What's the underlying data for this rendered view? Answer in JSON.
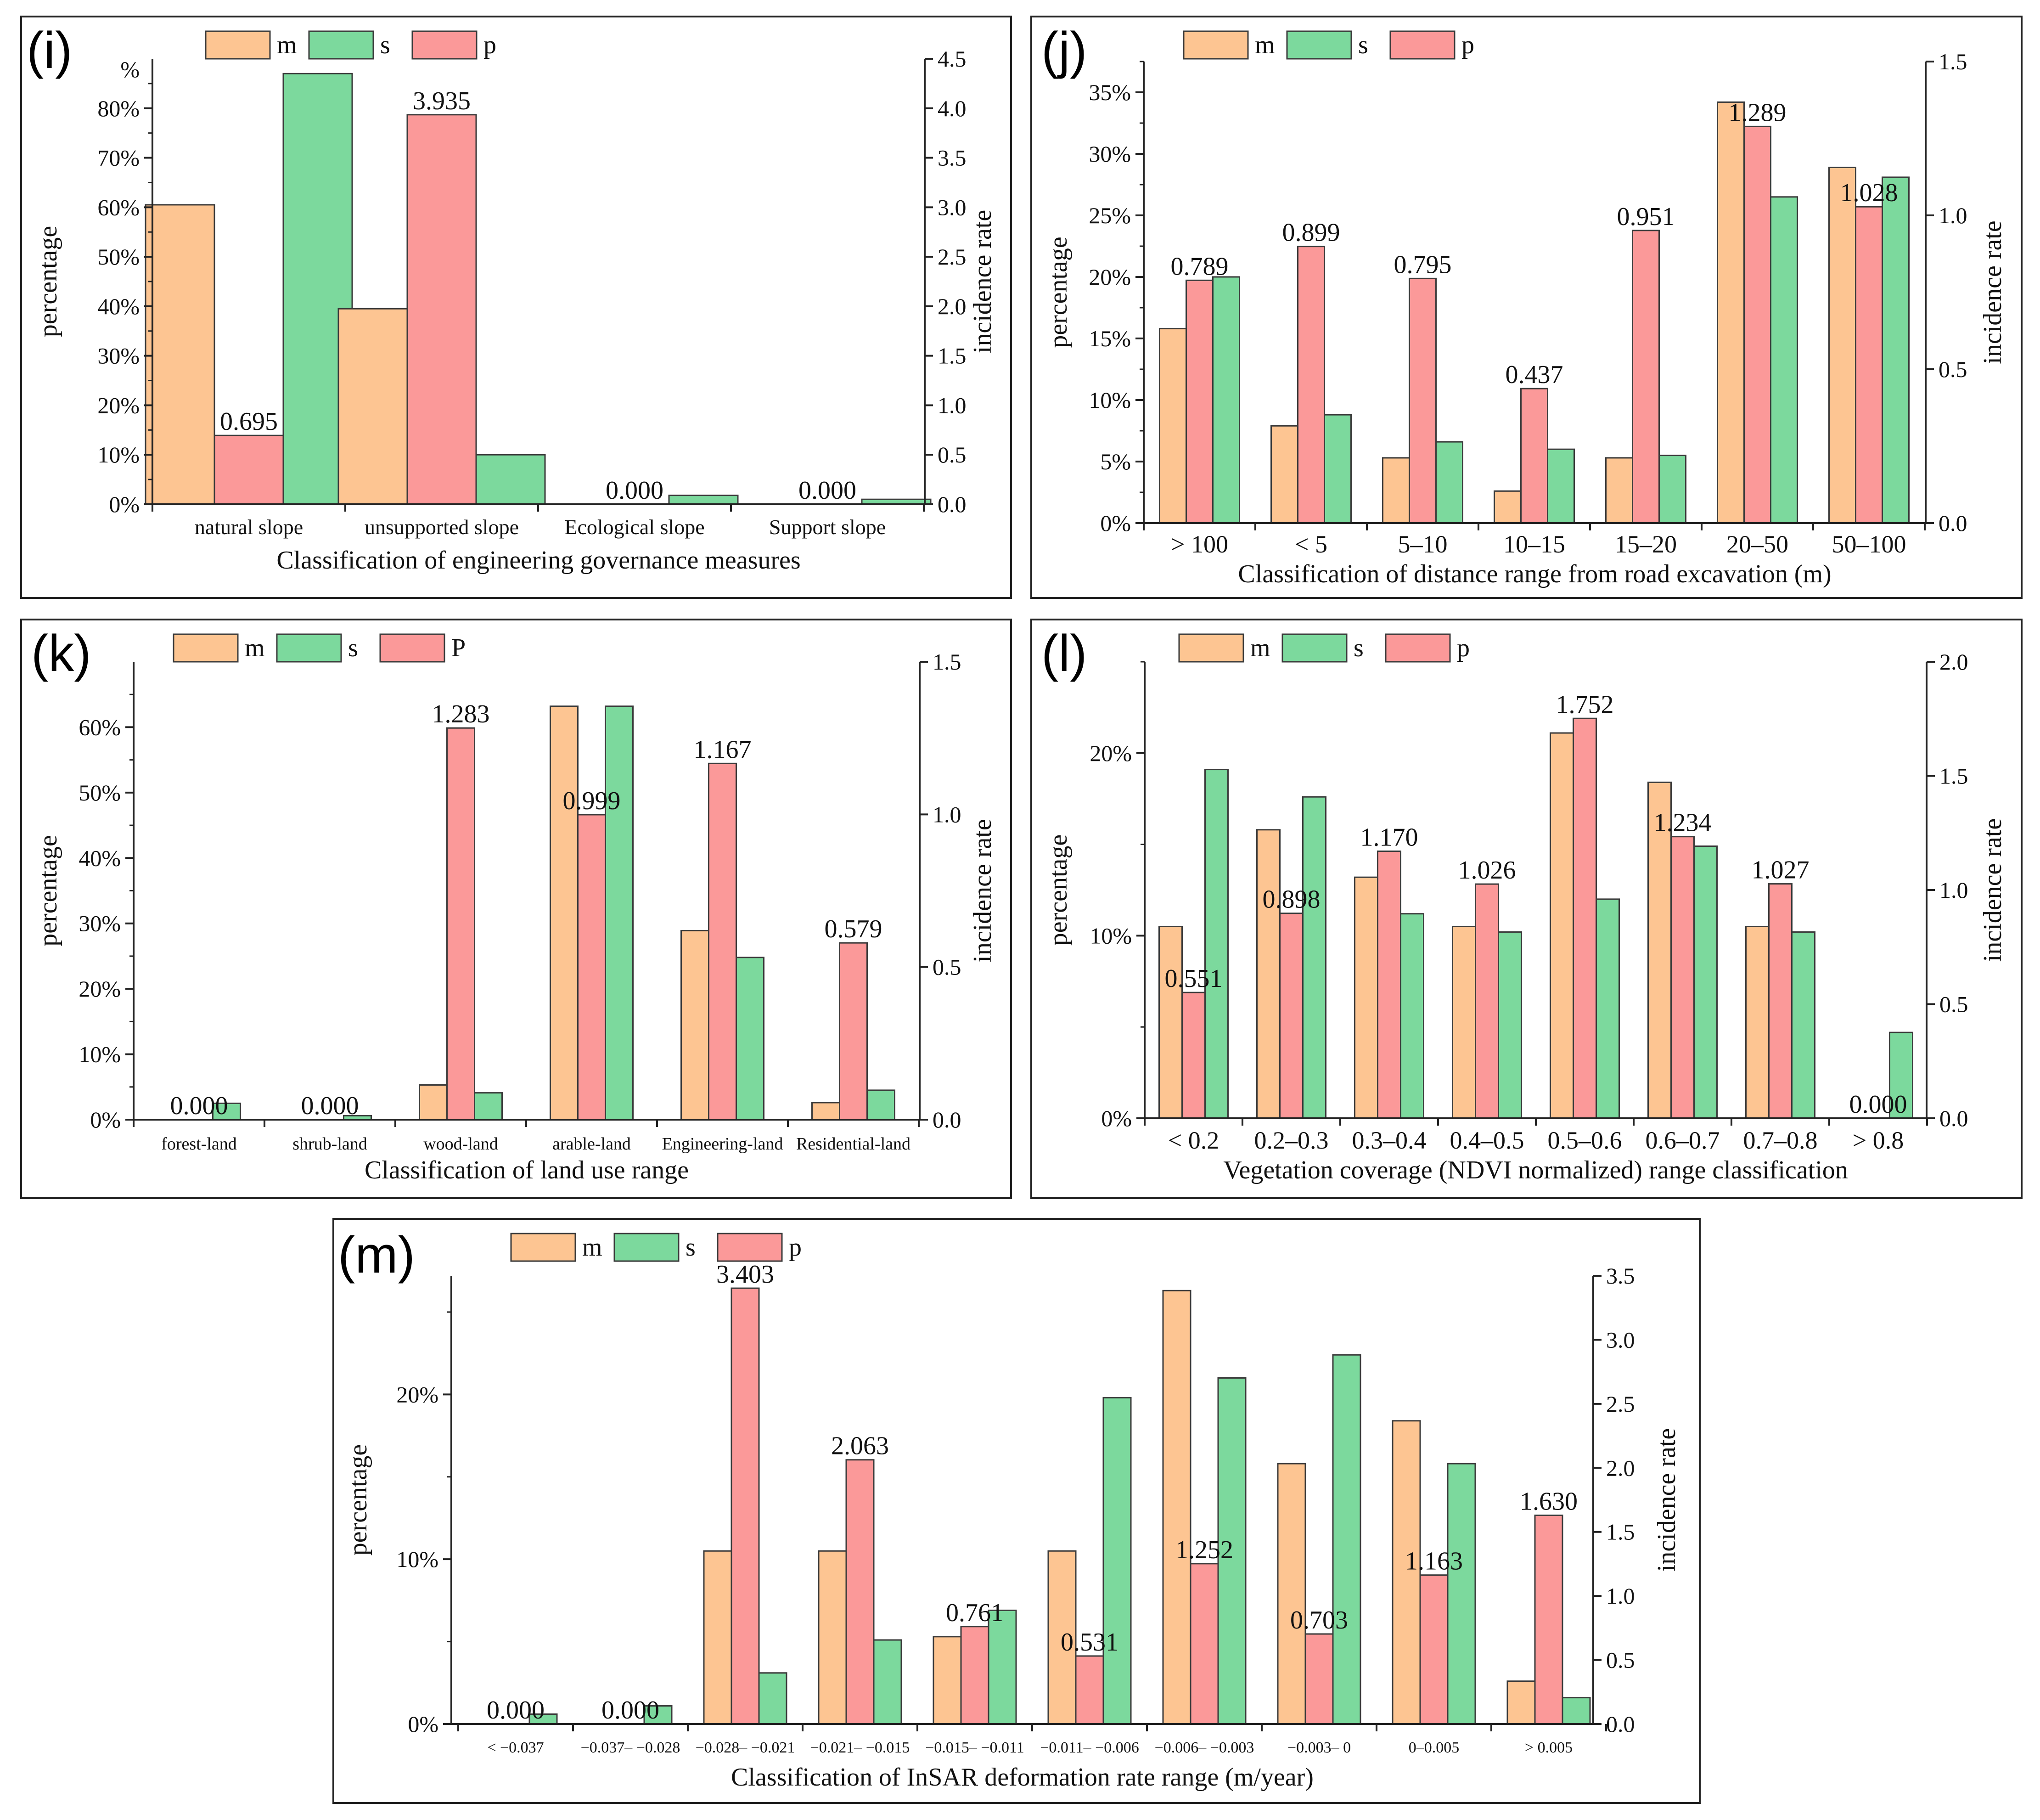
{
  "colors": {
    "m": "#FDC592",
    "s": "#7CD99D",
    "p": "#FB9999",
    "axis": "#222222",
    "stroke": "#3a3a3a"
  },
  "chart_data": [
    {
      "id": "i",
      "panel_label": "(i)",
      "type": "bar",
      "legend": [
        "m",
        "s",
        "p"
      ],
      "title": "",
      "xlabel": "Classification of engineering governance measures",
      "ylabel": "percentage",
      "y2label": "incidence rate",
      "categories": [
        "natural slope",
        "unsupported slope",
        "Ecological slope",
        "Support slope"
      ],
      "series": [
        {
          "name": "m",
          "axis": "left",
          "values": [
            60.5,
            39.5,
            0,
            0
          ]
        },
        {
          "name": "s",
          "axis": "left",
          "values": [
            87,
            10,
            1.8,
            1
          ]
        },
        {
          "name": "p",
          "axis": "right",
          "values": [
            0.695,
            3.935,
            0,
            0
          ],
          "labels": [
            "0.695",
            "3.935",
            "0.000",
            "0.000"
          ]
        }
      ],
      "ylim": [
        0,
        90
      ],
      "yticks": [
        0,
        10,
        20,
        30,
        40,
        50,
        60,
        70,
        80
      ],
      "yticklabels": [
        "0%",
        "10%",
        "20%",
        "30%",
        "40%",
        "50%",
        "60%",
        "70%",
        "80%"
      ],
      "ytop_label": "%",
      "y2lim": [
        0,
        4.5
      ],
      "y2ticks": [
        0,
        0.5,
        1,
        1.5,
        2,
        2.5,
        3,
        3.5,
        4,
        4.5
      ],
      "y2ticklabels": [
        "0.0",
        "0.5",
        "1.0",
        "1.5",
        "2.0",
        "2.5",
        "3.0",
        "3.5",
        "4.0",
        "4.5"
      ]
    },
    {
      "id": "j",
      "panel_label": "(j)",
      "type": "bar",
      "legend": [
        "m",
        "s",
        "p"
      ],
      "title": "",
      "xlabel": "Classification of distance range from road excavation (m)",
      "ylabel": "percentage",
      "y2label": "incidence rate",
      "categories": [
        "> 100",
        "< 5",
        "5–10",
        "10–15",
        "15–20",
        "20–50",
        "50–100"
      ],
      "series": [
        {
          "name": "m",
          "axis": "left",
          "values": [
            15.8,
            7.9,
            5.3,
            2.6,
            5.3,
            34.2,
            28.9
          ]
        },
        {
          "name": "s",
          "axis": "left",
          "values": [
            20,
            8.8,
            6.6,
            6,
            5.5,
            26.5,
            28.1
          ]
        },
        {
          "name": "p",
          "axis": "right",
          "values": [
            0.789,
            0.899,
            0.795,
            0.437,
            0.951,
            1.289,
            1.028
          ],
          "labels": [
            "0.789",
            "0.899",
            "0.795",
            "0.437",
            "0.951",
            "1.289",
            "1.028"
          ]
        }
      ],
      "ylim": [
        0,
        37.5
      ],
      "yticks": [
        0,
        5,
        10,
        15,
        20,
        25,
        30,
        35
      ],
      "yticklabels": [
        "0%",
        "5%",
        "10%",
        "15%",
        "20%",
        "25%",
        "30%",
        "35%"
      ],
      "y2lim": [
        0,
        1.5
      ],
      "y2ticks": [
        0,
        0.5,
        1,
        1.5
      ],
      "y2ticklabels": [
        "0.0",
        "0.5",
        "1.0",
        "1.5"
      ]
    },
    {
      "id": "k",
      "panel_label": "(k)",
      "type": "bar",
      "legend": [
        "m",
        "s",
        "P"
      ],
      "title": "",
      "xlabel": "Classification of land use range",
      "ylabel": "percentage",
      "y2label": "incidence rate",
      "categories": [
        "forest-land",
        "shrub-land",
        "wood-land",
        "arable-land",
        "Engineering-land",
        "Residential-land"
      ],
      "series": [
        {
          "name": "m",
          "axis": "left",
          "values": [
            0,
            0,
            5.3,
            63.2,
            28.9,
            2.6
          ]
        },
        {
          "name": "s",
          "axis": "left",
          "values": [
            2.5,
            0.6,
            4.1,
            63.2,
            24.8,
            4.5
          ]
        },
        {
          "name": "p",
          "axis": "right",
          "values": [
            0,
            0,
            1.283,
            0.999,
            1.167,
            0.579
          ],
          "labels": [
            "0.000",
            "0.000",
            "1.283",
            "0.999",
            "1.167",
            "0.579"
          ]
        }
      ],
      "ylim": [
        0,
        70
      ],
      "yticks": [
        0,
        10,
        20,
        30,
        40,
        50,
        60
      ],
      "yticklabels": [
        "0%",
        "10%",
        "20%",
        "30%",
        "40%",
        "50%",
        "60%"
      ],
      "y2lim": [
        0,
        1.5
      ],
      "y2ticks": [
        0,
        0.5,
        1,
        1.5
      ],
      "y2ticklabels": [
        "0.0",
        "0.5",
        "1.0",
        "1.5"
      ]
    },
    {
      "id": "l",
      "panel_label": "(l)",
      "type": "bar",
      "legend": [
        "m",
        "s",
        "p"
      ],
      "title": "",
      "xlabel": "Vegetation coverage (NDVI normalized) range classification",
      "ylabel": "percentage",
      "y2label": "incidence rate",
      "categories": [
        "< 0.2",
        "0.2–0.3",
        "0.3–0.4",
        "0.4–0.5",
        "0.5–0.6",
        "0.6–0.7",
        "0.7–0.8",
        "> 0.8"
      ],
      "series": [
        {
          "name": "m",
          "axis": "left",
          "values": [
            10.5,
            15.8,
            13.2,
            10.5,
            21.1,
            18.4,
            10.5,
            0
          ]
        },
        {
          "name": "s",
          "axis": "left",
          "values": [
            19.1,
            17.6,
            11.2,
            10.2,
            12,
            14.9,
            10.2,
            4.7
          ]
        },
        {
          "name": "p",
          "axis": "right",
          "values": [
            0.551,
            0.898,
            1.17,
            1.026,
            1.752,
            1.234,
            1.027,
            0
          ],
          "labels": [
            "0.551",
            "0.898",
            "1.170",
            "1.026",
            "1.752",
            "1.234",
            "1.027",
            "0.000"
          ]
        }
      ],
      "ylim": [
        0,
        25
      ],
      "yticks": [
        0,
        10,
        20
      ],
      "yticklabels": [
        "0%",
        "10%",
        "20%"
      ],
      "y2lim": [
        0,
        2
      ],
      "y2ticks": [
        0,
        0.5,
        1,
        1.5,
        2
      ],
      "y2ticklabels": [
        "0.0",
        "0.5",
        "1.0",
        "1.5",
        "2.0"
      ]
    },
    {
      "id": "m",
      "panel_label": "(m)",
      "type": "bar",
      "legend": [
        "m",
        "s",
        "p"
      ],
      "title": "",
      "xlabel": "Classification of InSAR deformation rate range (m/year)",
      "ylabel": "percentage",
      "y2label": "incidence rate",
      "categories": [
        "< −0.037",
        "−0.037– −0.028",
        "−0.028– −0.021",
        "−0.021– −0.015",
        "−0.015– −0.011",
        "−0.011– −0.006",
        "−0.006– −0.003",
        "−0.003– 0",
        "0–0.005",
        "> 0.005"
      ],
      "series": [
        {
          "name": "m",
          "axis": "left",
          "values": [
            0,
            0,
            10.5,
            10.5,
            5.3,
            10.5,
            26.3,
            15.8,
            18.4,
            2.6
          ]
        },
        {
          "name": "s",
          "axis": "left",
          "values": [
            0.6,
            1.1,
            3.1,
            5.1,
            6.9,
            19.8,
            21,
            22.4,
            15.8,
            1.6
          ]
        },
        {
          "name": "p",
          "axis": "right",
          "values": [
            0,
            0,
            3.403,
            2.063,
            0.761,
            0.531,
            1.252,
            0.703,
            1.163,
            1.63
          ],
          "labels": [
            "0.000",
            "0.000",
            "3.403",
            "2.063",
            "0.761",
            "0.531",
            "1.252",
            "0.703",
            "1.163",
            "1.630"
          ]
        }
      ],
      "ylim": [
        0,
        27.2
      ],
      "yticks": [
        0,
        10,
        20
      ],
      "yticklabels": [
        "0%",
        "10%",
        "20%"
      ],
      "y2lim": [
        0,
        3.5
      ],
      "y2ticks": [
        0,
        0.5,
        1,
        1.5,
        2,
        2.5,
        3,
        3.5
      ],
      "y2ticklabels": [
        "0.0",
        "0.5",
        "1.0",
        "1.5",
        "2.0",
        "2.5",
        "3.0",
        "3.5"
      ]
    }
  ]
}
